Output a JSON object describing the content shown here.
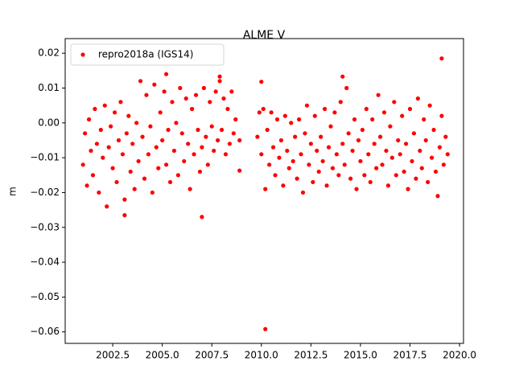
{
  "chart_data": {
    "type": "scatter",
    "title": "ALME V",
    "ylabel": "m",
    "legend": "upper left",
    "xlim": [
      2000.1,
      2020.2
    ],
    "ylim": [
      -0.0633,
      0.0242
    ],
    "xticks": [
      2002.5,
      {
        "value": 2005,
        "label": "2005.0"
      },
      2007.5,
      {
        "value": 2010,
        "label": "2010.0"
      },
      2012.5,
      {
        "value": 2015,
        "label": "2015.0"
      },
      2017.5,
      {
        "value": 2020,
        "label": "2020.0"
      }
    ],
    "yticks": [
      {
        "value": -0.06,
        "label": "−0.06"
      },
      {
        "value": -0.05,
        "label": "−0.05"
      },
      {
        "value": -0.04,
        "label": "−0.04"
      },
      {
        "value": -0.03,
        "label": "−0.03"
      },
      {
        "value": -0.02,
        "label": "−0.02"
      },
      {
        "value": -0.01,
        "label": "−0.01"
      },
      {
        "value": 0,
        "label": "0.00"
      },
      0.01,
      0.02
    ],
    "series": [
      {
        "name": "repro2018a (IGS14)",
        "color": "#ff0000",
        "x": [
          2001.0,
          2001.1,
          2001.2,
          2001.3,
          2001.4,
          2001.5,
          2001.6,
          2001.7,
          2001.8,
          2001.9,
          2002.0,
          2002.1,
          2002.2,
          2002.3,
          2002.4,
          2002.5,
          2002.6,
          2002.7,
          2002.8,
          2002.9,
          2003.0,
          2003.1,
          2003.2,
          2003.3,
          2003.4,
          2003.5,
          2003.6,
          2003.7,
          2003.8,
          2003.9,
          2004.0,
          2004.1,
          2004.2,
          2004.3,
          2004.4,
          2004.5,
          2004.6,
          2004.7,
          2004.8,
          2004.9,
          2005.0,
          2005.1,
          2005.2,
          2005.3,
          2005.4,
          2005.5,
          2005.6,
          2005.7,
          2005.8,
          2005.9,
          2006.0,
          2006.1,
          2006.2,
          2006.3,
          2006.4,
          2006.5,
          2006.6,
          2006.7,
          2006.8,
          2006.9,
          2007.0,
          2007.1,
          2007.2,
          2007.3,
          2007.4,
          2007.5,
          2007.6,
          2007.7,
          2007.8,
          2007.9,
          2008.0,
          2008.1,
          2008.2,
          2008.3,
          2008.4,
          2008.5,
          2008.6,
          2008.7,
          2008.9,
          2009.8,
          2009.9,
          2010.0,
          2010.1,
          2010.2,
          2010.3,
          2010.4,
          2010.5,
          2010.6,
          2010.7,
          2010.8,
          2010.9,
          2011.0,
          2011.1,
          2011.2,
          2011.3,
          2011.4,
          2011.5,
          2011.6,
          2011.7,
          2011.8,
          2011.9,
          2012.0,
          2012.1,
          2012.2,
          2012.3,
          2012.4,
          2012.5,
          2012.6,
          2012.7,
          2012.8,
          2012.9,
          2013.0,
          2013.1,
          2013.2,
          2013.3,
          2013.4,
          2013.5,
          2013.6,
          2013.7,
          2013.8,
          2013.9,
          2014.0,
          2014.1,
          2014.2,
          2014.3,
          2014.4,
          2014.5,
          2014.6,
          2014.7,
          2014.8,
          2014.9,
          2015.0,
          2015.1,
          2015.2,
          2015.3,
          2015.4,
          2015.5,
          2015.6,
          2015.7,
          2015.8,
          2015.9,
          2016.0,
          2016.1,
          2016.2,
          2016.3,
          2016.4,
          2016.5,
          2016.6,
          2016.7,
          2016.8,
          2016.9,
          2017.0,
          2017.1,
          2017.2,
          2017.3,
          2017.4,
          2017.5,
          2017.6,
          2017.7,
          2017.8,
          2017.9,
          2018.0,
          2018.1,
          2018.2,
          2018.3,
          2018.4,
          2018.5,
          2018.6,
          2018.7,
          2018.8,
          2018.9,
          2019.0,
          2019.1,
          2019.2,
          2019.3,
          2019.4,
          2019.1,
          2010.2,
          2007.0,
          2003.1,
          2014.1,
          2005.2,
          2007.9,
          2008.9,
          2010.0
        ],
        "values": [
          -0.012,
          -0.003,
          -0.018,
          0.001,
          -0.008,
          -0.015,
          0.004,
          -0.006,
          -0.02,
          -0.002,
          -0.01,
          0.005,
          -0.024,
          -0.007,
          -0.001,
          -0.013,
          0.003,
          -0.017,
          -0.005,
          0.006,
          -0.009,
          -0.022,
          -0.003,
          0.002,
          -0.014,
          -0.006,
          -0.019,
          0.0,
          -0.011,
          0.012,
          -0.004,
          -0.016,
          0.008,
          -0.009,
          -0.001,
          -0.02,
          0.011,
          -0.007,
          -0.013,
          0.003,
          -0.005,
          0.009,
          -0.012,
          -0.002,
          -0.017,
          0.006,
          -0.008,
          0.0,
          -0.015,
          0.01,
          -0.003,
          -0.011,
          0.007,
          -0.006,
          -0.019,
          0.004,
          -0.009,
          0.008,
          -0.002,
          -0.014,
          -0.007,
          0.01,
          -0.004,
          -0.012,
          0.006,
          -0.001,
          -0.008,
          0.009,
          -0.005,
          0.012,
          -0.002,
          0.007,
          -0.009,
          0.004,
          -0.006,
          0.009,
          -0.003,
          0.001,
          -0.005,
          -0.004,
          0.003,
          -0.009,
          0.004,
          -0.019,
          -0.002,
          -0.012,
          0.003,
          -0.007,
          -0.015,
          0.001,
          -0.01,
          -0.005,
          -0.018,
          0.002,
          -0.008,
          -0.013,
          0.0,
          -0.011,
          -0.004,
          -0.016,
          0.001,
          -0.009,
          -0.02,
          -0.003,
          0.005,
          -0.012,
          -0.006,
          -0.017,
          0.002,
          -0.008,
          -0.014,
          -0.004,
          -0.011,
          0.004,
          -0.018,
          -0.007,
          -0.001,
          -0.013,
          0.003,
          -0.009,
          -0.015,
          0.006,
          -0.006,
          -0.012,
          0.01,
          -0.003,
          -0.016,
          -0.008,
          0.001,
          -0.019,
          -0.005,
          -0.011,
          -0.002,
          -0.015,
          0.004,
          -0.009,
          -0.017,
          0.001,
          -0.006,
          -0.013,
          0.008,
          -0.004,
          -0.012,
          0.003,
          -0.008,
          -0.018,
          -0.001,
          -0.01,
          0.006,
          -0.015,
          -0.005,
          -0.009,
          0.002,
          -0.014,
          -0.006,
          -0.019,
          0.004,
          -0.011,
          -0.003,
          -0.016,
          0.007,
          -0.008,
          -0.013,
          0.001,
          -0.005,
          -0.017,
          0.005,
          -0.01,
          -0.002,
          -0.014,
          -0.021,
          -0.007,
          0.002,
          -0.012,
          -0.004,
          -0.009,
          0.0185,
          -0.0592,
          -0.027,
          -0.0265,
          0.0133,
          0.014,
          0.0133,
          -0.0137,
          0.0118
        ]
      }
    ]
  }
}
